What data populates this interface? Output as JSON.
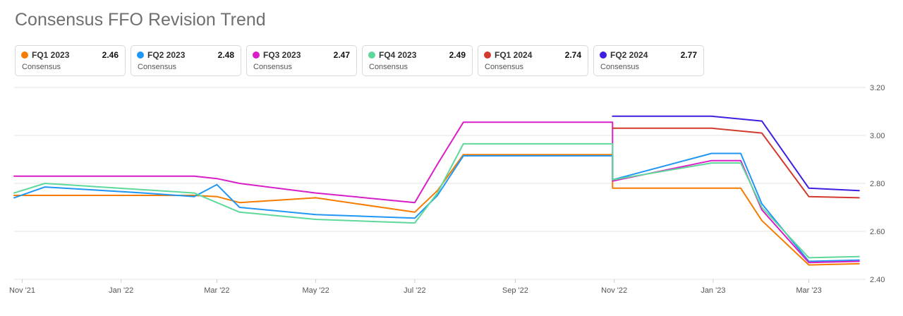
{
  "title": "Consensus FFO Revision Trend",
  "legend": [
    {
      "name": "FQ1 2023",
      "value": "2.46",
      "sub": "Consensus",
      "color": "#f57c00"
    },
    {
      "name": "FQ2 2023",
      "value": "2.48",
      "sub": "Consensus",
      "color": "#2196f3"
    },
    {
      "name": "FQ3 2023",
      "value": "2.47",
      "sub": "Consensus",
      "color": "#d81ec6"
    },
    {
      "name": "FQ4 2023",
      "value": "2.49",
      "sub": "Consensus",
      "color": "#5fd89c"
    },
    {
      "name": "FQ1 2024",
      "value": "2.74",
      "sub": "Consensus",
      "color": "#d23a2e"
    },
    {
      "name": "FQ2 2024",
      "value": "2.77",
      "sub": "Consensus",
      "color": "#3f1ee0"
    }
  ],
  "chart_data": {
    "type": "line",
    "title": "Consensus FFO Revision Trend",
    "x_ticks": [
      "Nov '21",
      "Jan '22",
      "Mar '22",
      "May '22",
      "Jul '22",
      "Sep '22",
      "Nov '22",
      "Jan '23",
      "Mar '23"
    ],
    "x_range": [
      "2021-10-27",
      "2023-04-05"
    ],
    "y_ticks": [
      "2.40",
      "2.60",
      "2.80",
      "3.00",
      "3.20"
    ],
    "ylim": [
      2.4,
      3.2
    ],
    "grid": "horizontal",
    "legend_position": "top",
    "series": [
      {
        "name": "FQ1 2023",
        "color": "#f57c00",
        "points": [
          [
            "2021-10-27",
            2.75
          ],
          [
            "2022-02-15",
            2.75
          ],
          [
            "2022-03-01",
            2.745
          ],
          [
            "2022-03-15",
            2.72
          ],
          [
            "2022-05-01",
            2.74
          ],
          [
            "2022-07-01",
            2.68
          ],
          [
            "2022-07-15",
            2.77
          ],
          [
            "2022-07-31",
            2.92
          ],
          [
            "2022-10-31",
            2.92
          ],
          [
            "2022-10-31",
            2.78
          ],
          [
            "2023-01-18",
            2.78
          ],
          [
            "2023-01-31",
            2.645
          ],
          [
            "2023-03-01",
            2.46
          ],
          [
            "2023-04-01",
            2.465
          ]
        ]
      },
      {
        "name": "FQ2 2023",
        "color": "#2196f3",
        "points": [
          [
            "2021-10-27",
            2.74
          ],
          [
            "2021-11-15",
            2.785
          ],
          [
            "2022-01-15",
            2.76
          ],
          [
            "2022-02-15",
            2.745
          ],
          [
            "2022-03-01",
            2.795
          ],
          [
            "2022-03-15",
            2.7
          ],
          [
            "2022-05-01",
            2.67
          ],
          [
            "2022-07-01",
            2.655
          ],
          [
            "2022-07-15",
            2.75
          ],
          [
            "2022-07-31",
            2.915
          ],
          [
            "2022-10-31",
            2.915
          ],
          [
            "2022-10-31",
            2.815
          ],
          [
            "2022-12-31",
            2.925
          ],
          [
            "2023-01-18",
            2.925
          ],
          [
            "2023-01-31",
            2.715
          ],
          [
            "2023-03-01",
            2.475
          ],
          [
            "2023-04-01",
            2.48
          ]
        ]
      },
      {
        "name": "FQ3 2023",
        "color": "#d81ec6",
        "points": [
          [
            "2021-10-27",
            2.83
          ],
          [
            "2022-02-15",
            2.83
          ],
          [
            "2022-03-01",
            2.82
          ],
          [
            "2022-03-15",
            2.8
          ],
          [
            "2022-05-01",
            2.76
          ],
          [
            "2022-07-01",
            2.72
          ],
          [
            "2022-07-15",
            2.88
          ],
          [
            "2022-07-31",
            3.055
          ],
          [
            "2022-10-31",
            3.055
          ],
          [
            "2022-10-31",
            2.81
          ],
          [
            "2022-12-31",
            2.895
          ],
          [
            "2023-01-18",
            2.895
          ],
          [
            "2023-01-31",
            2.69
          ],
          [
            "2023-03-01",
            2.47
          ],
          [
            "2023-04-01",
            2.475
          ]
        ]
      },
      {
        "name": "FQ4 2023",
        "color": "#5fd89c",
        "points": [
          [
            "2021-10-27",
            2.76
          ],
          [
            "2021-11-15",
            2.8
          ],
          [
            "2022-02-15",
            2.76
          ],
          [
            "2022-03-15",
            2.68
          ],
          [
            "2022-05-01",
            2.65
          ],
          [
            "2022-07-01",
            2.635
          ],
          [
            "2022-07-15",
            2.76
          ],
          [
            "2022-07-31",
            2.965
          ],
          [
            "2022-10-31",
            2.965
          ],
          [
            "2022-10-31",
            2.815
          ],
          [
            "2022-12-31",
            2.885
          ],
          [
            "2023-01-18",
            2.885
          ],
          [
            "2023-01-31",
            2.7
          ],
          [
            "2023-03-01",
            2.49
          ],
          [
            "2023-04-01",
            2.495
          ]
        ]
      },
      {
        "name": "FQ1 2024",
        "color": "#d23a2e",
        "points": [
          [
            "2022-10-31",
            3.03
          ],
          [
            "2022-12-31",
            3.03
          ],
          [
            "2023-01-31",
            3.01
          ],
          [
            "2023-03-01",
            2.745
          ],
          [
            "2023-04-01",
            2.74
          ]
        ]
      },
      {
        "name": "FQ2 2024",
        "color": "#3f1ee0",
        "points": [
          [
            "2022-10-31",
            3.08
          ],
          [
            "2022-12-31",
            3.08
          ],
          [
            "2023-01-31",
            3.06
          ],
          [
            "2023-03-01",
            2.78
          ],
          [
            "2023-04-01",
            2.77
          ]
        ]
      }
    ]
  }
}
